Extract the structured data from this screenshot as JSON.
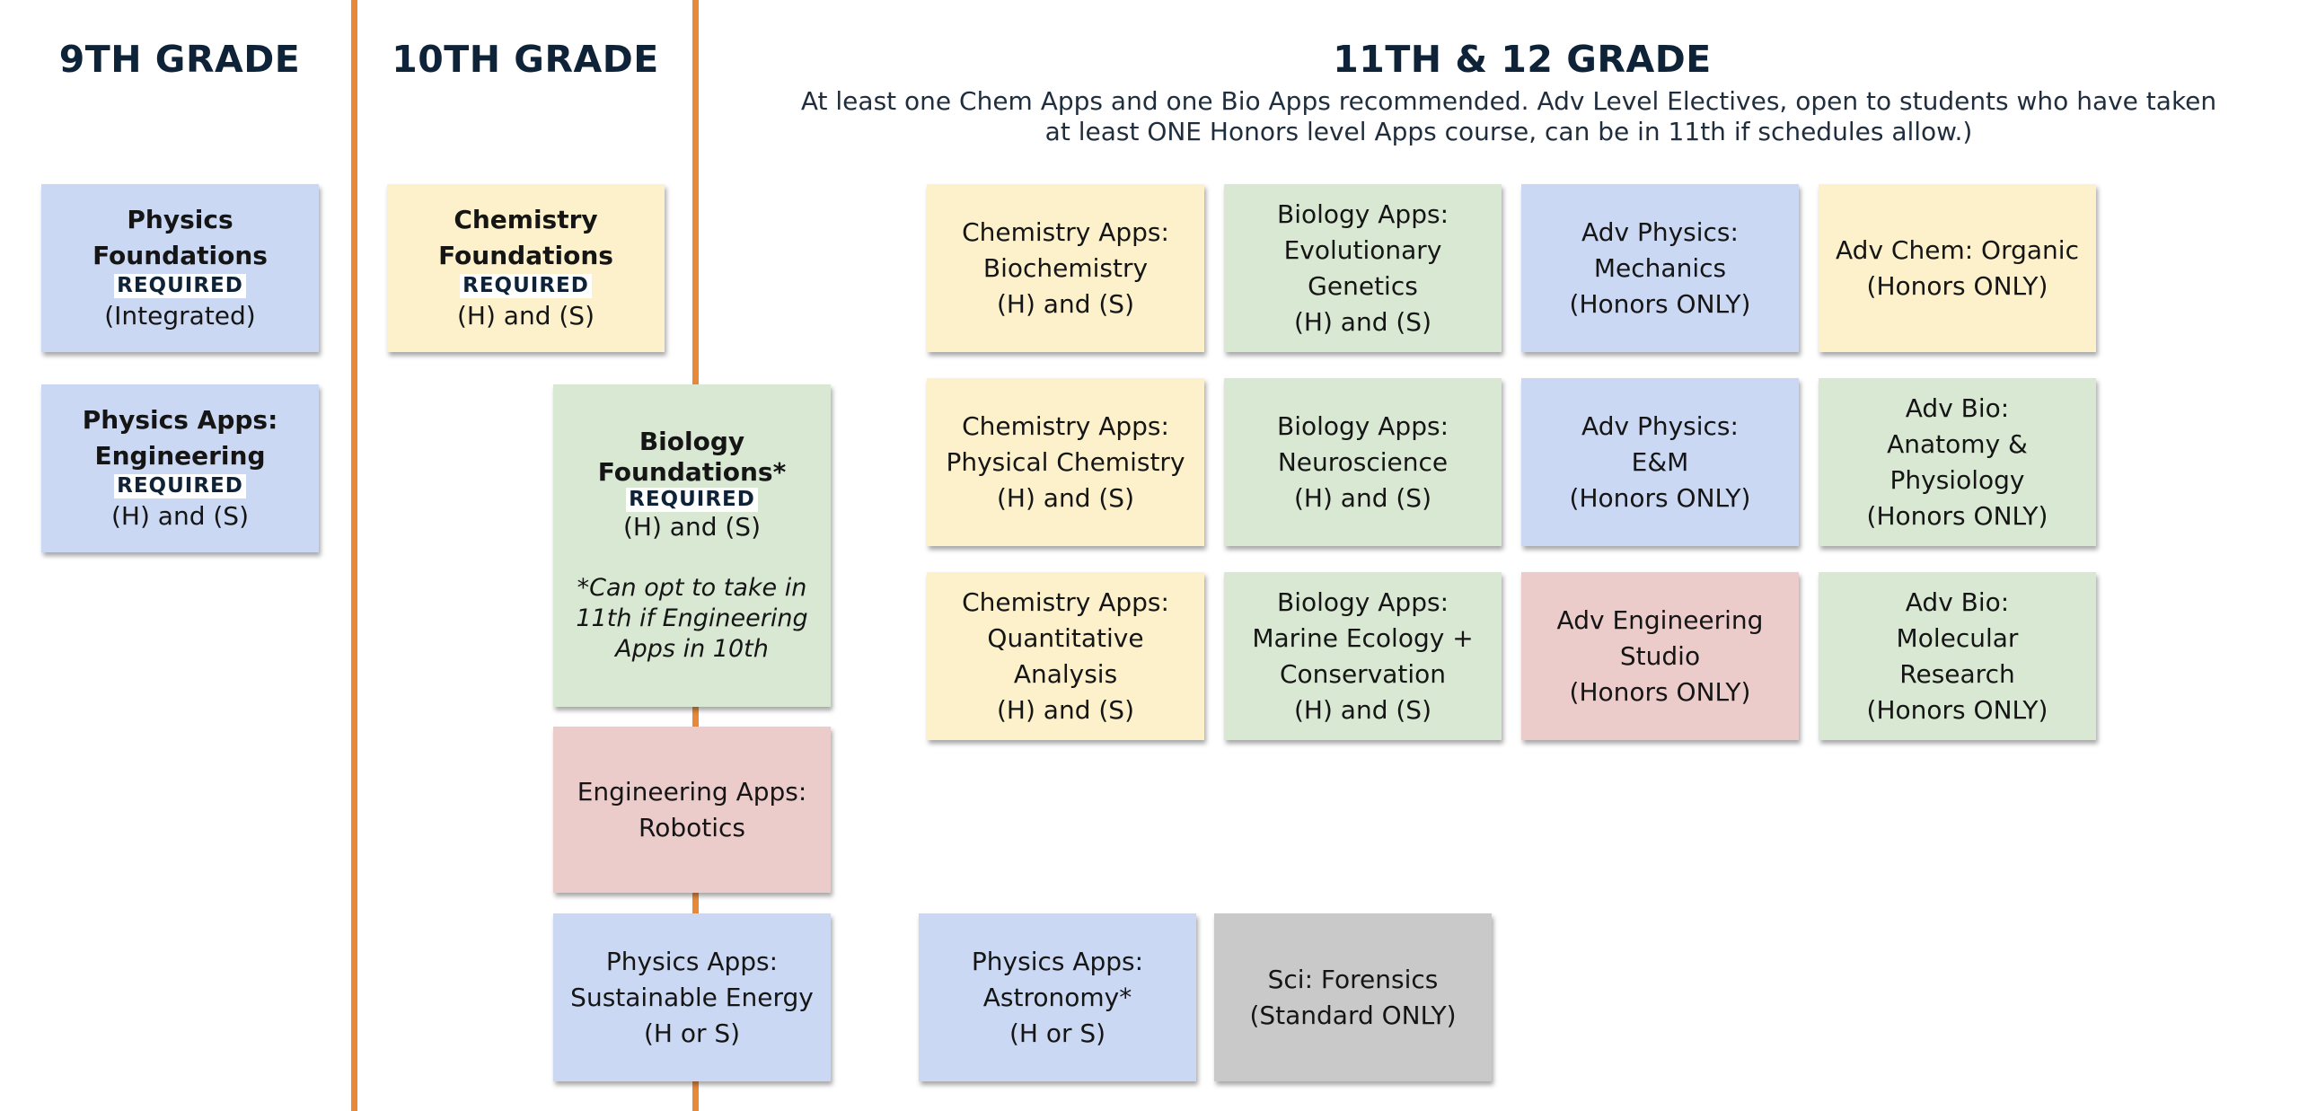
{
  "colors": {
    "divider": "#e8893a",
    "heading": "#0e2337",
    "physics": "#cad8f3",
    "chemistry": "#fcf1cb",
    "biology": "#d9e8d3",
    "engineering": "#ecccca",
    "standard": "#c9c9c9"
  },
  "headings": {
    "grade9": "9TH GRADE",
    "grade10": "10TH GRADE",
    "grade11_12": "11TH & 12 GRADE",
    "note_line1": "At least one Chem Apps and one Bio Apps recommended. Adv Level Electives, open to students who have taken",
    "note_line2": "at least ONE Honors level Apps course, can be in 11th if schedules allow.)"
  },
  "grade9": {
    "physics_foundations": {
      "line1": "Physics",
      "line2": "Foundations",
      "tag": "REQUIRED",
      "detail": "(Integrated)"
    },
    "physics_engineering": {
      "line1": "Physics Apps:",
      "line2": "Engineering",
      "tag": "REQUIRED",
      "detail": "(H) and (S)"
    }
  },
  "grade10": {
    "chemistry_foundations": {
      "line1": "Chemistry",
      "line2": "Foundations",
      "tag": "REQUIRED",
      "detail": "(H) and (S)"
    },
    "biology_foundations": {
      "line1": "Biology",
      "line2": "Foundations*",
      "tag": "REQUIRED",
      "detail": "(H) and (S)",
      "note1": "*Can opt to take in",
      "note2": "11th if Engineering",
      "note3": "Apps in 10th"
    },
    "engineering_robotics": {
      "line1": "Engineering Apps:",
      "line2": "Robotics"
    },
    "physics_sustainable": {
      "line1": "Physics Apps:",
      "line2": "Sustainable Energy",
      "line3": "(H or S)"
    }
  },
  "upper": {
    "chem_biochem": {
      "line1": "Chemistry Apps:",
      "line2": "Biochemistry",
      "line3": "(H) and (S)"
    },
    "bio_evolutionary": {
      "line1": "Biology Apps:",
      "line2": "Evolutionary",
      "line3": "Genetics",
      "line4": "(H) and (S)"
    },
    "adv_phys_mechanics": {
      "line1": "Adv Physics:",
      "line2": "Mechanics",
      "line3": "(Honors ONLY)"
    },
    "adv_chem_organic": {
      "line1": "Adv Chem: Organic",
      "line2": "(Honors ONLY)"
    },
    "chem_physical": {
      "line1": "Chemistry Apps:",
      "line2": "Physical Chemistry",
      "line3": "(H) and (S)"
    },
    "bio_neuro": {
      "line1": "Biology Apps:",
      "line2": "Neuroscience",
      "line3": "(H) and (S)"
    },
    "adv_phys_em": {
      "line1": "Adv Physics:",
      "line2": "E&M",
      "line3": "(Honors ONLY)"
    },
    "adv_bio_anatomy": {
      "line1": "Adv Bio:",
      "line2": "Anatomy &",
      "line3": "Physiology",
      "line4": "(Honors ONLY)"
    },
    "chem_quant": {
      "line1": "Chemistry Apps:",
      "line2": "Quantitative",
      "line3": "Analysis",
      "line4": "(H) and (S)"
    },
    "bio_marine": {
      "line1": "Biology Apps:",
      "line2": "Marine Ecology +",
      "line3": "Conservation",
      "line4": "(H) and (S)"
    },
    "adv_eng_studio": {
      "line1": "Adv Engineering",
      "line2": "Studio",
      "line3": "(Honors ONLY)"
    },
    "adv_bio_molecular": {
      "line1": "Adv Bio:",
      "line2": "Molecular",
      "line3": "Research",
      "line4": "(Honors ONLY)"
    },
    "phys_astronomy": {
      "line1": "Physics Apps:",
      "line2": "Astronomy*",
      "line3": "(H or S)"
    },
    "sci_forensics": {
      "line1": "Sci: Forensics",
      "line2": "(Standard ONLY)"
    }
  }
}
